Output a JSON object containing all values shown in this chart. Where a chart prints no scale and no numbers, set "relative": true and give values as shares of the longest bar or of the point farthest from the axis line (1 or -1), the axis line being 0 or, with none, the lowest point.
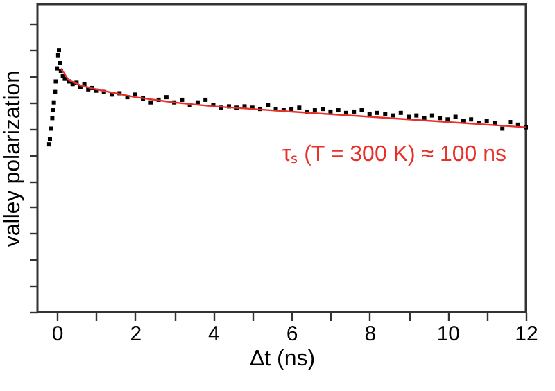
{
  "chart_data": {
    "type": "scatter",
    "relative": true,
    "xlabel": "Δt (ns)",
    "ylabel": "valley polarization",
    "xlim": [
      -0.5,
      12
    ],
    "xticks": [
      0,
      {
        "value": 1,
        "label": null
      },
      2,
      {
        "value": 3,
        "label": null
      },
      4,
      {
        "value": 5,
        "label": null
      },
      6,
      {
        "value": 7,
        "label": null
      },
      8,
      {
        "value": 9,
        "label": null
      },
      10,
      {
        "value": 11,
        "label": null
      },
      12
    ],
    "tick_labels": "x",
    "grid": false,
    "annotations": [
      "τₛ (T = 300 K) ≈ 100 ns"
    ],
    "series": [
      {
        "marker": "square",
        "color": "#000000",
        "x": [
          -0.2,
          -0.18,
          -0.15,
          -0.12,
          -0.1,
          -0.08,
          -0.05,
          -0.03,
          0.0,
          0.03,
          0.05,
          0.08,
          0.1,
          0.15,
          0.2,
          0.3,
          0.4,
          0.5,
          0.6,
          0.7,
          0.8,
          0.9,
          1.0,
          1.2,
          1.4,
          1.6,
          1.8,
          2.0,
          2.2,
          2.4,
          2.6,
          2.8,
          3.0,
          3.2,
          3.4,
          3.6,
          3.8,
          4.0,
          4.2,
          4.4,
          4.6,
          4.8,
          5.0,
          5.2,
          5.4,
          5.6,
          5.8,
          6.0,
          6.2,
          6.4,
          6.6,
          6.8,
          7.0,
          7.2,
          7.4,
          7.6,
          7.8,
          8.0,
          8.2,
          8.4,
          8.6,
          8.8,
          9.0,
          9.2,
          9.4,
          9.6,
          9.8,
          10.0,
          10.2,
          10.4,
          10.6,
          10.8,
          11.0,
          11.2,
          11.4,
          11.6,
          11.8,
          12.0
        ],
        "values": [
          0.64,
          0.66,
          0.7,
          0.74,
          0.77,
          0.8,
          0.84,
          0.88,
          0.93,
          0.98,
          1.0,
          0.95,
          0.92,
          0.9,
          0.89,
          0.88,
          0.87,
          0.875,
          0.86,
          0.87,
          0.85,
          0.855,
          0.845,
          0.84,
          0.83,
          0.835,
          0.82,
          0.83,
          0.815,
          0.8,
          0.81,
          0.82,
          0.8,
          0.81,
          0.79,
          0.8,
          0.81,
          0.79,
          0.78,
          0.785,
          0.78,
          0.785,
          0.78,
          0.775,
          0.79,
          0.775,
          0.77,
          0.775,
          0.78,
          0.765,
          0.77,
          0.775,
          0.765,
          0.77,
          0.76,
          0.765,
          0.77,
          0.755,
          0.76,
          0.755,
          0.75,
          0.76,
          0.745,
          0.75,
          0.74,
          0.75,
          0.74,
          0.735,
          0.745,
          0.73,
          0.735,
          0.72,
          0.73,
          0.72,
          0.7,
          0.725,
          0.715,
          0.705
        ]
      },
      {
        "type": "line",
        "color": "#e8302a",
        "x": [
          0.1,
          0.3,
          0.6,
          1,
          1.5,
          2,
          3,
          4,
          5,
          6,
          8,
          10,
          12
        ],
        "values": [
          0.93,
          0.885,
          0.865,
          0.85,
          0.835,
          0.82,
          0.8,
          0.785,
          0.775,
          0.765,
          0.745,
          0.725,
          0.705
        ]
      }
    ]
  }
}
